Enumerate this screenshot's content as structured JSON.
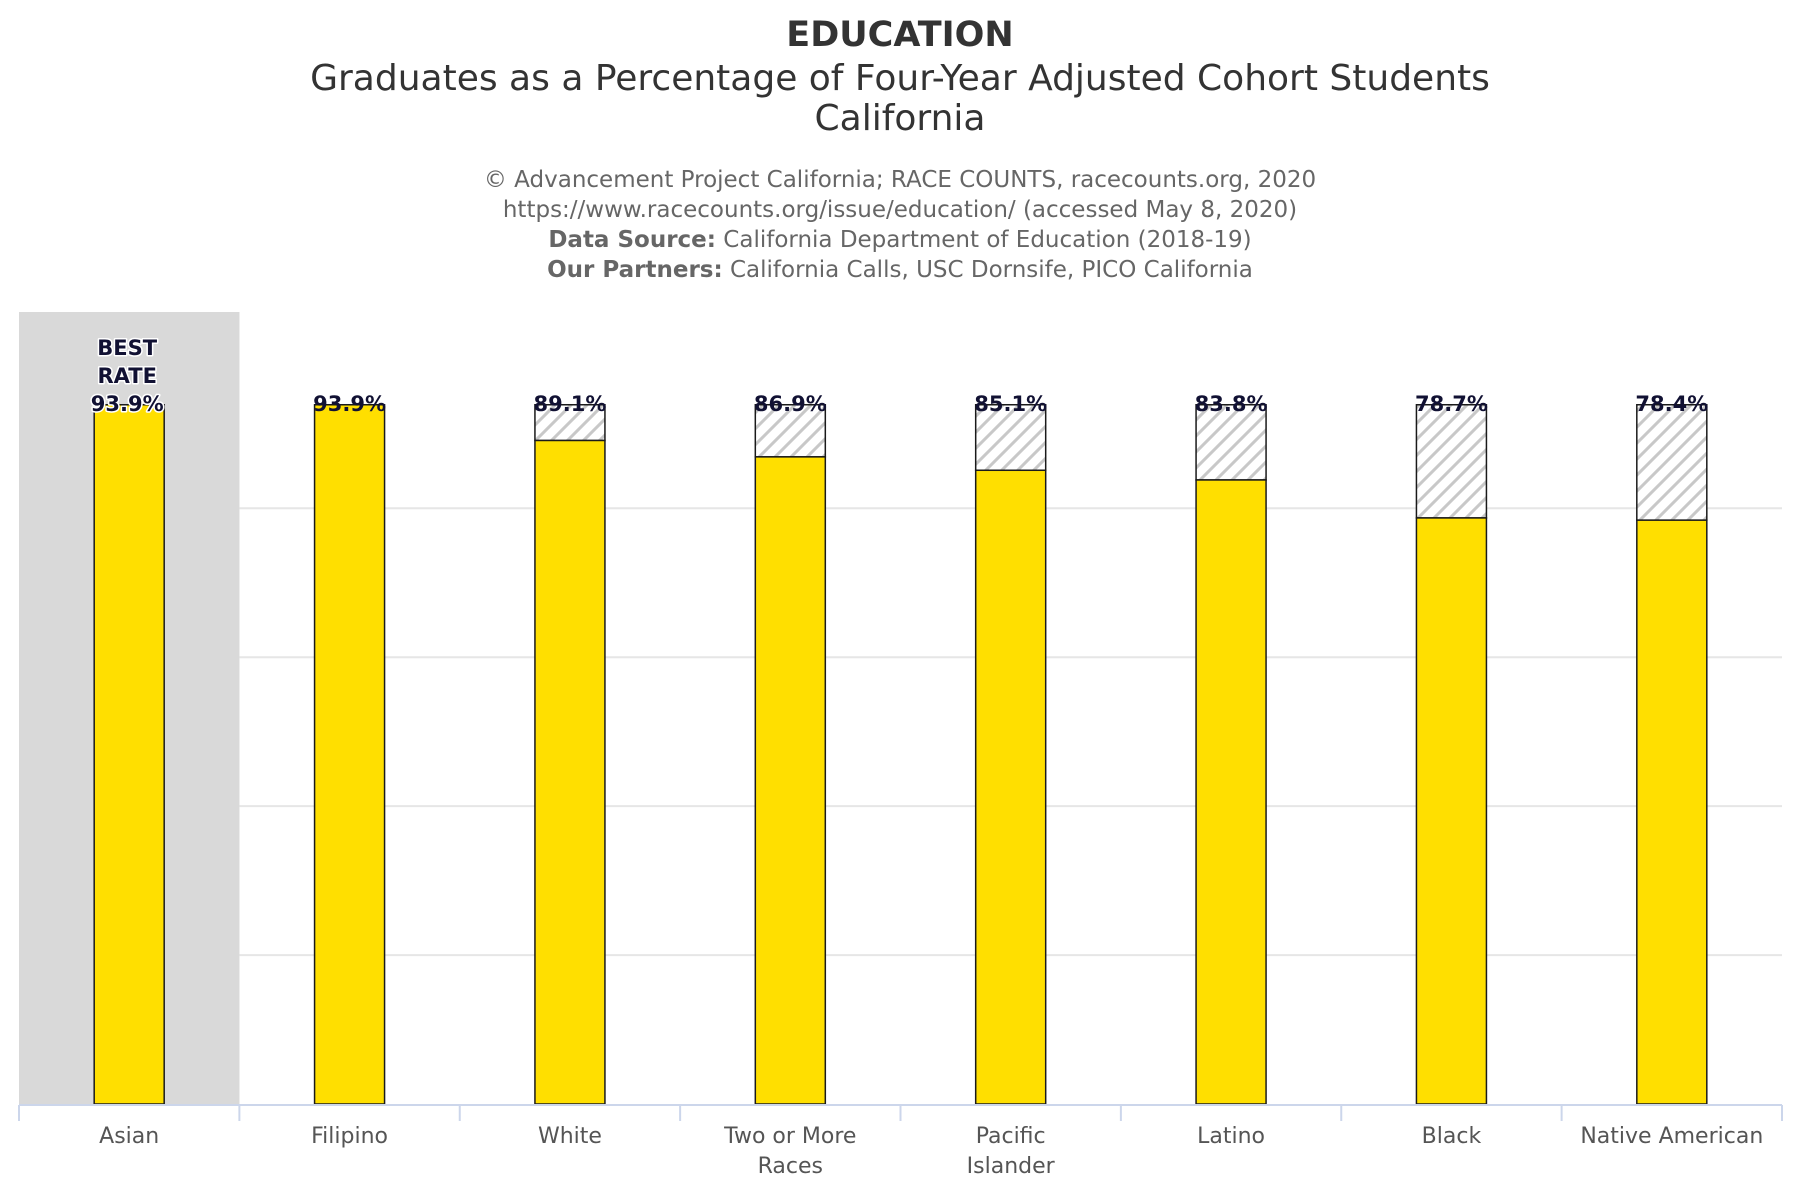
{
  "chart_data": {
    "type": "bar",
    "title": "EDUCATION",
    "subtitle_lines": [
      "Graduates as a Percentage of Four-Year Adjusted Cohort Students",
      "California"
    ],
    "credits": {
      "line1": "© Advancement Project California; RACE COUNTS, racecounts.org, 2020",
      "line2": "https://www.racecounts.org/issue/education/ (accessed May 8, 2020)",
      "data_source_label": "Data Source:",
      "data_source_text": " California Department of Education (2018-19)",
      "partners_label": "Our Partners:",
      "partners_text": " California Calls, USC Dornsife, PICO California"
    },
    "categories": [
      "Asian",
      "Filipino",
      "White",
      "Two or More Races",
      "Pacific Islander",
      "Latino",
      "Black",
      "Native American"
    ],
    "category_lines": [
      [
        "Asian"
      ],
      [
        "Filipino"
      ],
      [
        "White"
      ],
      [
        "Two or More",
        "Races"
      ],
      [
        "Pacific",
        "Islander"
      ],
      [
        "Latino"
      ],
      [
        "Black"
      ],
      [
        "Native American"
      ]
    ],
    "series": [
      {
        "values": [
          93.9,
          93.9,
          89.1,
          86.9,
          85.1,
          83.8,
          78.7,
          78.4
        ]
      }
    ],
    "value_labels": [
      "93.9%",
      "93.9%",
      "89.1%",
      "86.9%",
      "85.1%",
      "83.8%",
      "78.7%",
      "78.4%"
    ],
    "best_rate": {
      "category": "Asian",
      "value": 93.9,
      "label_lines": [
        "BEST",
        "RATE",
        "93.9%"
      ]
    },
    "gap_to_best_hatched": true,
    "ylim": [
      0,
      94
    ],
    "grid": true,
    "xlabel": "",
    "ylabel": "",
    "colors": {
      "bar_fill": "#FFDF00",
      "bar_stroke": "#1a1a1a",
      "hatch": "#C8C8C8",
      "best_band": "#D9D9D9",
      "grid": "#E6E6E6",
      "axis": "#CCD6EB"
    }
  }
}
